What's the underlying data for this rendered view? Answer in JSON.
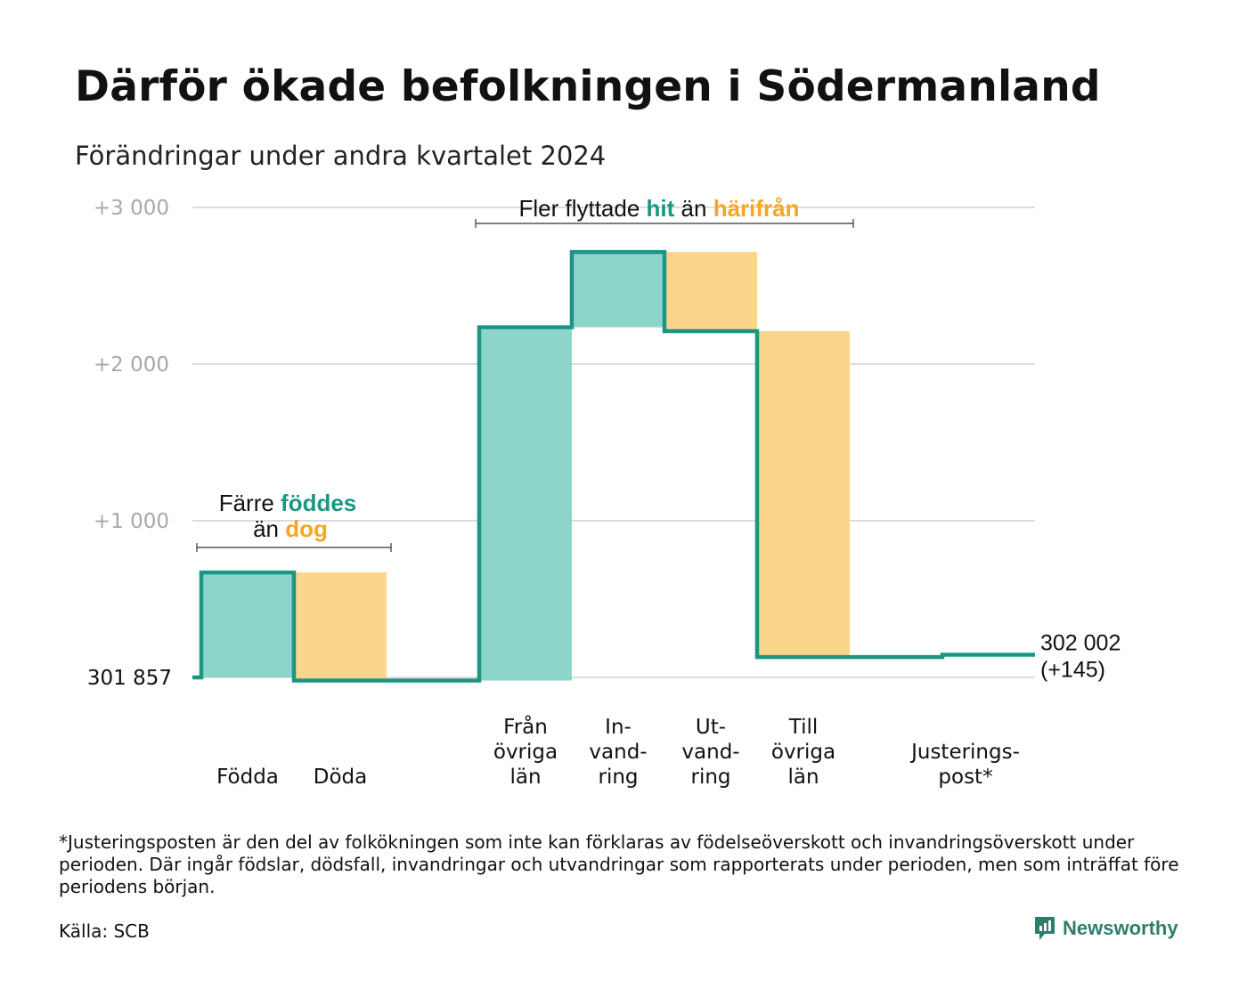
{
  "title": "Därför ökade befolkningen i Södermanland",
  "subtitle": "Förändringar under andra kvartalet 2024",
  "footnote": "*Justeringsposten är den del av folkökningen som inte kan förklaras av födelseöverskott och invandringsöverskott under perioden. Där ingår födslar, dödsfall, invandringar och utvandringar som rapporterats under perioden, men som inträffat före periodens början.",
  "source": "Källa: SCB",
  "logo_text": "Newsworthy",
  "colors": {
    "gain": "#8dd5cb",
    "loss": "#fbd58c",
    "line": "#1a9782",
    "accent_gain": "#1a9782",
    "accent_loss": "#f5a623",
    "grid": "#dddddd",
    "tick": "#a8a8a8"
  },
  "chart_data": {
    "type": "waterfall",
    "base_value": 301857,
    "base_label": "301  857",
    "ylim": [
      0,
      3000
    ],
    "yticks": [
      {
        "value": 1000,
        "label": "+1  000"
      },
      {
        "value": 2000,
        "label": "+2  000"
      },
      {
        "value": 3000,
        "label": "+3  000"
      }
    ],
    "grid": true,
    "steps": [
      {
        "key": "fodda",
        "label_lines": [
          "Födda"
        ],
        "change": 670,
        "kind": "gain"
      },
      {
        "key": "doda",
        "label_lines": [
          "Döda"
        ],
        "change": -690,
        "kind": "loss"
      },
      {
        "key": "fran-ovriga-lan",
        "label_lines": [
          "Från",
          "övriga",
          "län"
        ],
        "change": 2255,
        "kind": "gain"
      },
      {
        "key": "invandring",
        "label_lines": [
          "In-",
          "vand-",
          "ring"
        ],
        "change": 480,
        "kind": "gain"
      },
      {
        "key": "utvandring",
        "label_lines": [
          "Ut-",
          "vand-",
          "ring"
        ],
        "change": -505,
        "kind": "loss"
      },
      {
        "key": "till-ovriga-lan",
        "label_lines": [
          "Till",
          "övriga",
          "län"
        ],
        "change": -2080,
        "kind": "loss"
      },
      {
        "key": "justeringspost",
        "label_lines": [
          "Justerings-",
          "post*"
        ],
        "change": 15,
        "kind": "adjust"
      }
    ],
    "end_label_lines": [
      "302 002",
      "(+145)"
    ],
    "annotations": [
      {
        "key": "birth",
        "line1": [
          {
            "text": "Färre ",
            "style": "plain"
          },
          {
            "text": "föddes",
            "style": "gain"
          }
        ],
        "line2": [
          {
            "text": "än ",
            "style": "plain"
          },
          {
            "text": "dog",
            "style": "loss"
          }
        ]
      },
      {
        "key": "migration",
        "line1": [
          {
            "text": "Fler flyttade ",
            "style": "plain"
          },
          {
            "text": "hit",
            "style": "gain"
          },
          {
            "text": "  än ",
            "style": "plain"
          },
          {
            "text": "härifrån",
            "style": "loss"
          }
        ]
      }
    ]
  }
}
